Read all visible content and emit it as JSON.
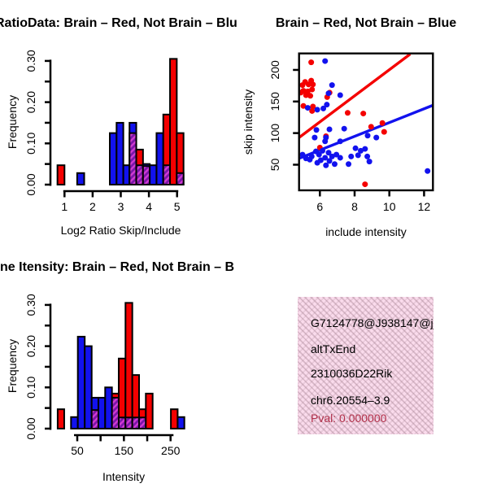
{
  "colors": {
    "red": "#f40000",
    "blue": "#1212ee",
    "hatch_light": "#d23bd2",
    "hatch_dark": "#7a15a8",
    "axis": "#000000",
    "info_bg": "#fadbec",
    "pval_red": "#b2304a"
  },
  "infobox": {
    "lines": [
      "G7124778@J938147@j_",
      "altTxEnd",
      "2310036D22Rik",
      "chr6.20554–3.9",
      "Pval: 0.000000"
    ],
    "pval_color": "#b2304a"
  },
  "chart_data": [
    {
      "id": "hist_ratio",
      "type": "bar",
      "subtype": "overlaid-histograms",
      "title": "RatioData: Brain – Red, Not Brain – Blu",
      "xlabel": "Log2 Ratio Skip/Include",
      "ylabel": "Frequency",
      "xlim": [
        0.5,
        5.5
      ],
      "ylim": [
        0,
        0.32
      ],
      "x_ticks": [
        1,
        2,
        3,
        4,
        5
      ],
      "x_tick_labels": [
        "1",
        "2",
        "3",
        "4",
        "5"
      ],
      "y_ticks": [
        0,
        0.05,
        0.1,
        0.15,
        0.2,
        0.25,
        0.3
      ],
      "y_tick_labels": [
        "0.00",
        "",
        "0.10",
        "",
        "0.20",
        "",
        "0.30"
      ],
      "legend": {
        "red": "Brain",
        "blue": "Not Brain"
      },
      "bars": [
        {
          "x1": 0.75,
          "x2": 1.0,
          "color": "red",
          "h": 0.047
        },
        {
          "x1": 1.45,
          "x2": 1.7,
          "color": "blue",
          "h": 0.028
        },
        {
          "x1": 2.61,
          "x2": 2.85,
          "color": "blue",
          "h": 0.125
        },
        {
          "x1": 2.85,
          "x2": 3.09,
          "color": "blue",
          "h": 0.15
        },
        {
          "x1": 3.09,
          "x2": 3.31,
          "color": "blue",
          "h": 0.047
        },
        {
          "x1": 3.31,
          "x2": 3.55,
          "color": "blue",
          "h": 0.15,
          "overlap": 0.125
        },
        {
          "x1": 3.55,
          "x2": 3.79,
          "color": "red",
          "h": 0.085,
          "overlap": 0.047
        },
        {
          "x1": 3.79,
          "x2": 4.03,
          "color": "blue",
          "h": 0.05,
          "overlap": 0.045
        },
        {
          "x1": 4.03,
          "x2": 4.27,
          "color": "blue",
          "h": 0.047
        },
        {
          "x1": 4.27,
          "x2": 4.51,
          "color": "blue",
          "h": 0.125
        },
        {
          "x1": 4.51,
          "x2": 4.75,
          "color": "red",
          "h": 0.17,
          "overlap": 0.047
        },
        {
          "x1": 4.75,
          "x2": 4.99,
          "color": "red",
          "h": 0.305
        },
        {
          "x1": 4.99,
          "x2": 5.23,
          "color": "red",
          "h": 0.125,
          "overlap": 0.028
        }
      ]
    },
    {
      "id": "scatter",
      "type": "scatter",
      "title": "Brain – Red, Not Brain – Blue",
      "xlabel": "include intensity",
      "ylabel": "skip intensity",
      "xlim": [
        4.8,
        12.5
      ],
      "ylim": [
        10,
        226
      ],
      "x_ticks": [
        6,
        8,
        10,
        12
      ],
      "x_tick_labels": [
        "6",
        "8",
        "10",
        "12"
      ],
      "y_ticks": [
        50,
        100,
        150,
        200
      ],
      "y_tick_labels": [
        "50",
        "100",
        "150",
        "200"
      ],
      "series": [
        {
          "name": "Brain",
          "color": "red",
          "points": [
            [
              5.5,
              212
            ],
            [
              4.9,
              164
            ],
            [
              5.0,
              176
            ],
            [
              5.15,
              181
            ],
            [
              5.35,
              177
            ],
            [
              5.5,
              183
            ],
            [
              5.6,
              177
            ],
            [
              5.05,
              167
            ],
            [
              5.3,
              166
            ],
            [
              5.55,
              169
            ],
            [
              5.2,
              160
            ],
            [
              5.45,
              159
            ],
            [
              6.42,
              157
            ],
            [
              6.56,
              164
            ],
            [
              5.05,
              143
            ],
            [
              5.6,
              142
            ],
            [
              5.55,
              135
            ],
            [
              7.6,
              132
            ],
            [
              8.5,
              131
            ],
            [
              6.35,
              95
            ],
            [
              6.0,
              77
            ],
            [
              8.95,
              110
            ],
            [
              9.6,
              116
            ],
            [
              9.7,
              102
            ],
            [
              8.6,
              19
            ]
          ]
        },
        {
          "name": "Not Brain",
          "color": "blue",
          "points": [
            [
              6.3,
              214
            ],
            [
              6.7,
              176
            ],
            [
              7.17,
              160
            ],
            [
              6.5,
              163
            ],
            [
              5.3,
              140
            ],
            [
              5.85,
              137
            ],
            [
              6.2,
              139
            ],
            [
              6.4,
              145
            ],
            [
              5.8,
              105
            ],
            [
              6.55,
              106
            ],
            [
              7.4,
              107
            ],
            [
              5.7,
              93
            ],
            [
              6.35,
              93
            ],
            [
              6.3,
              87
            ],
            [
              7.17,
              87
            ],
            [
              8.75,
              96
            ],
            [
              9.25,
              93
            ],
            [
              5.0,
              66
            ],
            [
              5.2,
              60
            ],
            [
              5.42,
              58
            ],
            [
              5.53,
              63
            ],
            [
              5.77,
              71
            ],
            [
              5.95,
              66
            ],
            [
              6.15,
              72
            ],
            [
              6.3,
              61
            ],
            [
              6.5,
              69
            ],
            [
              6.7,
              63
            ],
            [
              6.95,
              66
            ],
            [
              7.17,
              61
            ],
            [
              6.05,
              57
            ],
            [
              6.55,
              56
            ],
            [
              5.85,
              53
            ],
            [
              6.35,
              49
            ],
            [
              6.85,
              51
            ],
            [
              7.65,
              51
            ],
            [
              7.8,
              63
            ],
            [
              8.05,
              76
            ],
            [
              8.2,
              65
            ],
            [
              8.35,
              72
            ],
            [
              8.6,
              75
            ],
            [
              8.73,
              63
            ],
            [
              8.85,
              55
            ],
            [
              12.2,
              40
            ]
          ]
        }
      ],
      "lines": [
        {
          "name": "brain-fit",
          "color": "red",
          "x1": 4.8,
          "y1": 93,
          "x2": 11.2,
          "y2": 225
        },
        {
          "name": "not-brain-fit",
          "color": "blue",
          "x1": 4.8,
          "y1": 60,
          "x2": 12.6,
          "y2": 145
        }
      ]
    },
    {
      "id": "hist_intensity",
      "type": "bar",
      "subtype": "overlaid-histograms",
      "title": "ne Itensity: Brain – Red, Not Brain – B",
      "xlabel": "Intensity",
      "ylabel": "Frequency",
      "xlim": [
        0,
        290
      ],
      "ylim": [
        0,
        0.32
      ],
      "x_ticks": [
        50,
        100,
        150,
        200,
        250
      ],
      "x_tick_labels": [
        "50",
        "",
        "150",
        "",
        "250"
      ],
      "y_ticks": [
        0,
        0.05,
        0.1,
        0.15,
        0.2,
        0.25,
        0.3
      ],
      "y_tick_labels": [
        "0.00",
        "",
        "0.10",
        "",
        "0.20",
        "",
        "0.30"
      ],
      "legend": {
        "red": "Brain",
        "blue": "Not Brain"
      },
      "bars": [
        {
          "x1": 8.0,
          "x2": 22.0,
          "color": "red",
          "h": 0.047
        },
        {
          "x1": 36.6,
          "x2": 51.2,
          "color": "blue",
          "h": 0.028
        },
        {
          "x1": 51.2,
          "x2": 66.0,
          "color": "blue",
          "h": 0.223
        },
        {
          "x1": 66.0,
          "x2": 80.9,
          "color": "blue",
          "h": 0.2
        },
        {
          "x1": 80.9,
          "x2": 95.3,
          "color": "blue",
          "h": 0.075,
          "overlap": 0.045
        },
        {
          "x1": 95.3,
          "x2": 109.8,
          "color": "blue",
          "h": 0.075
        },
        {
          "x1": 109.8,
          "x2": 124.4,
          "color": "blue",
          "h": 0.1
        },
        {
          "x1": 124.4,
          "x2": 138.9,
          "color": "red",
          "h": 0.085,
          "overlap": 0.075
        },
        {
          "x1": 138.9,
          "x2": 153.4,
          "color": "red",
          "h": 0.17,
          "overlap": 0.027
        },
        {
          "x1": 153.4,
          "x2": 168.0,
          "color": "red",
          "h": 0.305,
          "overlap": 0.027
        },
        {
          "x1": 168.0,
          "x2": 182.5,
          "color": "red",
          "h": 0.13,
          "overlap": 0.027
        },
        {
          "x1": 182.5,
          "x2": 197.0,
          "color": "red",
          "h": 0.047,
          "overlap": 0.027
        },
        {
          "x1": 197.0,
          "x2": 211.6,
          "color": "red",
          "h": 0.085
        },
        {
          "x1": 250.7,
          "x2": 265.2,
          "color": "red",
          "h": 0.047
        },
        {
          "x1": 265.2,
          "x2": 279.6,
          "color": "blue",
          "h": 0.028
        }
      ]
    }
  ]
}
